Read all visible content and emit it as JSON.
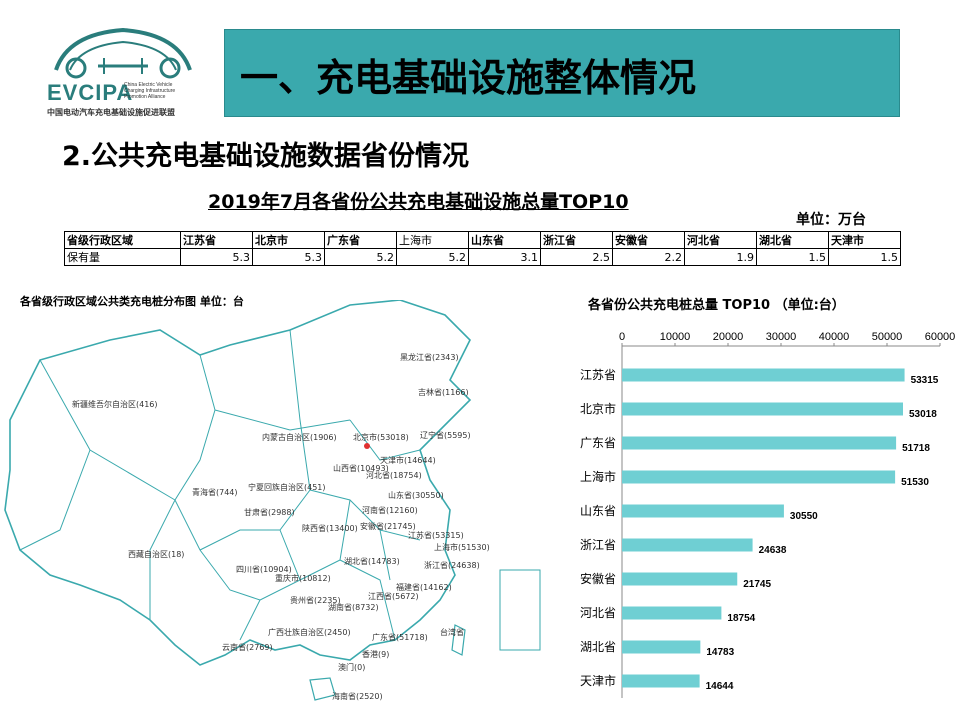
{
  "logo": {
    "name": "EVCIPA",
    "sub_lines": [
      "China Electric Vehicle",
      "Charging Infrastructure",
      "Promotion Alliance"
    ],
    "cn_name": "中国电动汽车充电基础设施促进联盟"
  },
  "header": {
    "title": "一、充电基础设施整体情况"
  },
  "section": {
    "subtitle": "2.公共充电基础设施数据省份情况"
  },
  "table": {
    "title": "2019年7月各省份公共充电基础设施总量TOP10",
    "unit": "单位：万台",
    "header_label": "省级行政区域",
    "row_label": "保有量",
    "provinces": [
      "江苏省",
      "北京市",
      "广东省",
      "上海市",
      "山东省",
      "浙江省",
      "安徽省",
      "河北省",
      "湖北省",
      "天津市"
    ],
    "values": [
      "5.3",
      "5.3",
      "5.2",
      "5.2",
      "3.1",
      "2.5",
      "2.2",
      "1.9",
      "1.5",
      "1.5"
    ]
  },
  "map": {
    "title": "各省级行政区域公共类充电桩分布图  单位：台",
    "border_color": "#3aa9ad",
    "labels": [
      {
        "text": "黑龙江省(2343)"
      },
      {
        "text": "吉林省(1166)"
      },
      {
        "text": "辽宁省(5595)"
      },
      {
        "text": "新疆维吾尔自治区(416)"
      },
      {
        "text": "内蒙古自治区(1906)"
      },
      {
        "text": "北京市(53018)"
      },
      {
        "text": "天津市(14644)"
      },
      {
        "text": "山西省(10493)"
      },
      {
        "text": "河北省(18754)"
      },
      {
        "text": "宁夏回族自治区(451)"
      },
      {
        "text": "山东省(30550)"
      },
      {
        "text": "青海省(744)"
      },
      {
        "text": "甘肃省(2988)"
      },
      {
        "text": "河南省(12160)"
      },
      {
        "text": "陕西省(13400)"
      },
      {
        "text": "安徽省(21745)"
      },
      {
        "text": "江苏省(53315)"
      },
      {
        "text": "上海市(51530)"
      },
      {
        "text": "西藏自治区(18)"
      },
      {
        "text": "湖北省(14783)"
      },
      {
        "text": "浙江省(24638)"
      },
      {
        "text": "四川省(10904)"
      },
      {
        "text": "重庆市(10812)"
      },
      {
        "text": "福建省(14162)"
      },
      {
        "text": "江西省(5672)"
      },
      {
        "text": "贵州省(2235)"
      },
      {
        "text": "湖南省(8732)"
      },
      {
        "text": "广西壮族自治区(2450)"
      },
      {
        "text": "广东省(51718)"
      },
      {
        "text": "台湾省"
      },
      {
        "text": "云南省(2769)"
      },
      {
        "text": "香港(9)"
      },
      {
        "text": "澳门(0)"
      },
      {
        "text": "海南省(2520)"
      }
    ]
  },
  "chart_data": {
    "type": "bar",
    "orientation": "horizontal",
    "title": "各省份公共充电桩总量 TOP10  （单位:台）",
    "categories": [
      "江苏省",
      "北京市",
      "广东省",
      "上海市",
      "山东省",
      "浙江省",
      "安徽省",
      "河北省",
      "湖北省",
      "天津市"
    ],
    "values": [
      53315,
      53018,
      51718,
      51530,
      30550,
      24638,
      21745,
      18754,
      14783,
      14644
    ],
    "xlim": [
      0,
      60000
    ],
    "xticks": [
      "0",
      "10000",
      "20000",
      "30000",
      "40000",
      "50000",
      "60000"
    ],
    "axis_position": "top",
    "bar_color": "#6fcfd3",
    "grid": false,
    "legend": false
  }
}
